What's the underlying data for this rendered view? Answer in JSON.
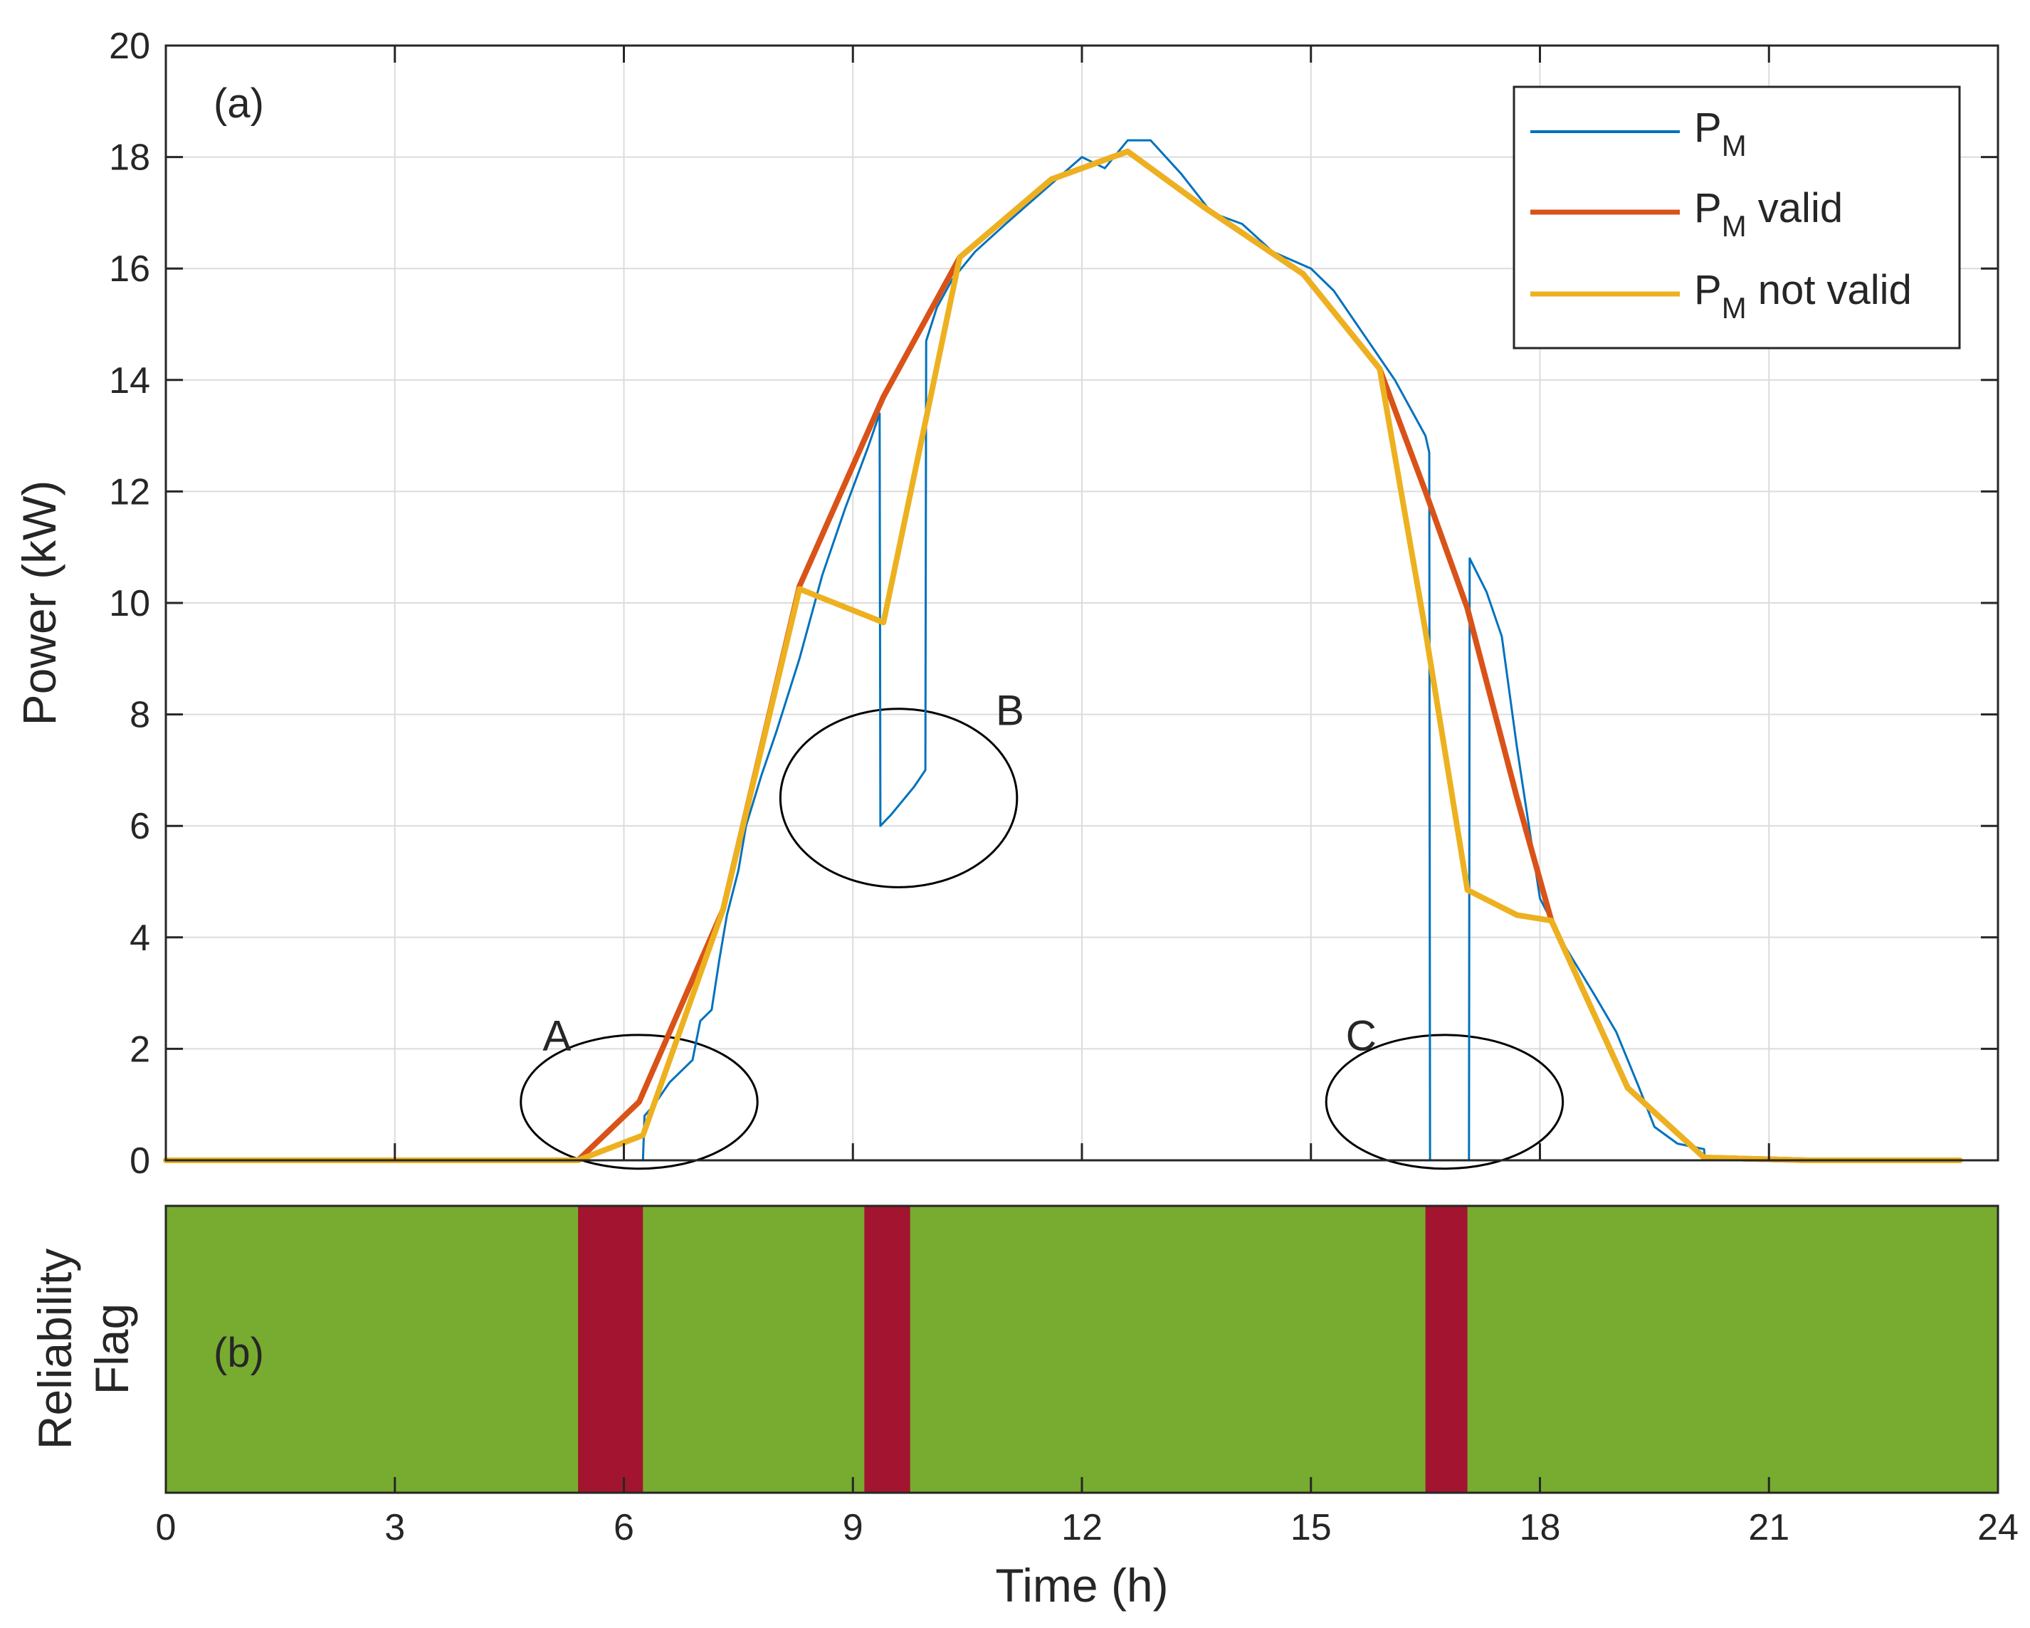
{
  "chart_data": [
    {
      "type": "line",
      "panel_label": "(a)",
      "xlabel": "Time (h)",
      "ylabel": "Power (kW)",
      "xlim": [
        0,
        24
      ],
      "ylim": [
        0,
        20
      ],
      "xticks": [
        0,
        3,
        6,
        9,
        12,
        15,
        18,
        21,
        24
      ],
      "yticks": [
        0,
        2,
        4,
        6,
        8,
        10,
        12,
        14,
        16,
        18,
        20
      ],
      "grid": true,
      "legend_position": "top-right",
      "series": [
        {
          "name": "P_M",
          "legend_main": "P",
          "legend_sub": "M",
          "legend_suffix": "",
          "color": "#0072BD",
          "width": 3,
          "points": [
            [
              0,
              0
            ],
            [
              5.5,
              0
            ],
            [
              6.0,
              0
            ],
            [
              6.25,
              0
            ],
            [
              6.27,
              0.8
            ],
            [
              6.4,
              1.0
            ],
            [
              6.6,
              1.4
            ],
            [
              6.9,
              1.8
            ],
            [
              7.0,
              2.5
            ],
            [
              7.15,
              2.7
            ],
            [
              7.25,
              3.6
            ],
            [
              7.35,
              4.4
            ],
            [
              7.5,
              5.2
            ],
            [
              7.6,
              6.0
            ],
            [
              7.8,
              6.9
            ],
            [
              8.0,
              7.7
            ],
            [
              8.3,
              9.0
            ],
            [
              8.6,
              10.5
            ],
            [
              8.9,
              11.7
            ],
            [
              9.2,
              12.8
            ],
            [
              9.35,
              13.4
            ],
            [
              9.36,
              6.0
            ],
            [
              9.5,
              6.2
            ],
            [
              9.8,
              6.7
            ],
            [
              9.95,
              7.0
            ],
            [
              9.96,
              14.7
            ],
            [
              10.1,
              15.3
            ],
            [
              10.3,
              15.8
            ],
            [
              10.6,
              16.3
            ],
            [
              11.0,
              16.8
            ],
            [
              11.5,
              17.4
            ],
            [
              12.0,
              18.0
            ],
            [
              12.3,
              17.8
            ],
            [
              12.6,
              18.3
            ],
            [
              12.9,
              18.3
            ],
            [
              13.3,
              17.7
            ],
            [
              13.7,
              17.0
            ],
            [
              14.1,
              16.8
            ],
            [
              14.5,
              16.3
            ],
            [
              15.0,
              16.0
            ],
            [
              15.3,
              15.6
            ],
            [
              15.7,
              14.8
            ],
            [
              16.1,
              14.0
            ],
            [
              16.5,
              13.0
            ],
            [
              16.55,
              12.7
            ],
            [
              16.56,
              0
            ],
            [
              17.07,
              0
            ],
            [
              17.08,
              10.8
            ],
            [
              17.3,
              10.2
            ],
            [
              17.5,
              9.4
            ],
            [
              17.7,
              7.4
            ],
            [
              18.0,
              4.7
            ],
            [
              18.3,
              3.9
            ],
            [
              18.7,
              3.0
            ],
            [
              19.0,
              2.3
            ],
            [
              19.3,
              1.3
            ],
            [
              19.5,
              0.6
            ],
            [
              19.8,
              0.3
            ],
            [
              20.15,
              0.2
            ],
            [
              20.16,
              0
            ],
            [
              24,
              0
            ]
          ]
        },
        {
          "name": "P_M valid",
          "legend_main": "P",
          "legend_sub": "M",
          "legend_suffix": " valid",
          "color": "#D95319",
          "width": 8,
          "points": [
            [
              5.4,
              0
            ],
            [
              6.2,
              1.05
            ],
            [
              7.3,
              4.5
            ],
            [
              8.3,
              10.3
            ],
            [
              9.4,
              13.7
            ],
            [
              10.4,
              16.2
            ],
            [
              11.6,
              17.6
            ],
            [
              12.6,
              18.1
            ],
            [
              13.6,
              17.1
            ],
            [
              14.9,
              15.9
            ],
            [
              15.9,
              14.2
            ],
            [
              16.5,
              12.0
            ],
            [
              17.05,
              9.9
            ],
            [
              17.7,
              6.5
            ],
            [
              18.15,
              4.3
            ],
            [
              19.15,
              1.3
            ],
            [
              20.15,
              0.05
            ],
            [
              21.5,
              0
            ],
            [
              23.5,
              0
            ]
          ]
        },
        {
          "name": "P_M not valid",
          "legend_main": "P",
          "legend_sub": "M",
          "legend_suffix": " not valid",
          "color": "#EDB120",
          "width": 8,
          "points": [
            [
              0,
              0
            ],
            [
              5.4,
              0
            ],
            [
              6.25,
              0.45
            ],
            [
              7.3,
              4.5
            ],
            [
              8.3,
              10.25
            ],
            [
              9.4,
              9.65
            ],
            [
              10.4,
              16.2
            ],
            [
              11.6,
              17.6
            ],
            [
              12.6,
              18.1
            ],
            [
              13.6,
              17.1
            ],
            [
              14.9,
              15.9
            ],
            [
              15.9,
              14.2
            ],
            [
              16.5,
              9.5
            ],
            [
              17.05,
              4.85
            ],
            [
              17.7,
              4.4
            ],
            [
              18.15,
              4.3
            ],
            [
              19.15,
              1.3
            ],
            [
              20.15,
              0.05
            ],
            [
              21.5,
              0
            ],
            [
              23.5,
              0
            ]
          ]
        }
      ],
      "annotations": [
        {
          "label": "A",
          "center_data": [
            6.2,
            1.05
          ],
          "radius_data": [
            1.55,
            1.2
          ]
        },
        {
          "label": "B",
          "center_data": [
            9.6,
            6.5
          ],
          "radius_data": [
            1.55,
            1.6
          ]
        },
        {
          "label": "C",
          "center_data": [
            16.75,
            1.05
          ],
          "radius_data": [
            1.55,
            1.2
          ]
        }
      ]
    },
    {
      "type": "heatmap",
      "panel_label": "(b)",
      "ylabel_lines": [
        "Reliability",
        "Flag"
      ],
      "xlabel": "Time (h)",
      "xlim": [
        0,
        24
      ],
      "valid_color": "#77AC30",
      "invalid_color": "#A2142F",
      "invalid_intervals": [
        [
          5.4,
          6.25
        ],
        [
          9.15,
          9.75
        ],
        [
          16.5,
          17.05
        ]
      ]
    }
  ]
}
